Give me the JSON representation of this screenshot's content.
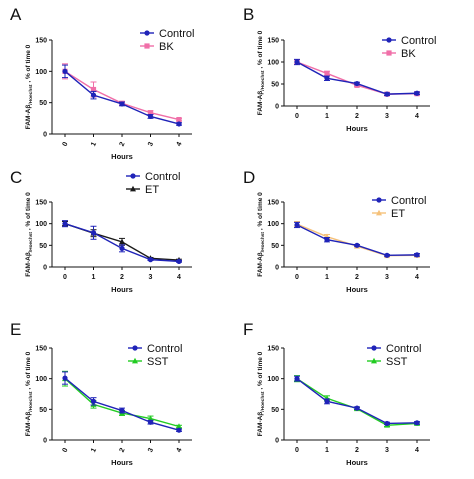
{
  "y_axis_label": {
    "prefix": "FAM-Aβ",
    "sub": "/Hoechst",
    "suffix": ", % of time 0"
  },
  "colors": {
    "control": "#1f23b8",
    "bk": "#f06fa8",
    "et": "#1a1a1a",
    "et_light": "#f5c17a",
    "sst": "#22cc22",
    "errorbar": "#777777"
  },
  "chart_data": [
    {
      "letter": "A",
      "type": "line",
      "xlabel": "Hours",
      "ylabel": "FAM-Aβ/Hoechst , % of time 0",
      "x": [
        0,
        1,
        2,
        3,
        4
      ],
      "ylim": [
        0,
        150
      ],
      "yticks": [
        0,
        50,
        100,
        150
      ],
      "xtick_style": "rotated",
      "legend": "top-right",
      "series": [
        {
          "name": "Control",
          "color": "#1f23b8",
          "marker": "circle",
          "values": [
            100,
            62,
            48,
            28,
            16
          ],
          "errors": [
            10,
            6,
            3,
            3,
            2
          ]
        },
        {
          "name": "BK",
          "color": "#f06fa8",
          "marker": "square",
          "values": [
            100,
            71,
            49,
            34,
            23
          ],
          "errors": [
            12,
            12,
            3,
            3,
            2
          ]
        }
      ]
    },
    {
      "letter": "B",
      "type": "line",
      "xlabel": "Hours",
      "ylabel": "FAM-Aβ/Hoechst , % of time 0",
      "x": [
        0,
        1,
        2,
        3,
        4
      ],
      "ylim": [
        0,
        150
      ],
      "yticks": [
        0,
        50,
        100,
        150
      ],
      "xtick_style": "upright",
      "legend": "top-right",
      "series": [
        {
          "name": "Control",
          "color": "#1f23b8",
          "marker": "circle",
          "values": [
            100,
            63,
            51,
            27,
            29
          ],
          "errors": [
            6,
            5,
            3,
            3,
            3
          ]
        },
        {
          "name": "BK",
          "color": "#f06fa8",
          "marker": "square",
          "values": [
            100,
            74,
            47,
            27,
            28
          ],
          "errors": [
            5,
            5,
            3,
            3,
            3
          ]
        }
      ]
    },
    {
      "letter": "C",
      "type": "line",
      "xlabel": "Hours",
      "ylabel": "FAM-Aβ/Hoechst , % of time 0",
      "x": [
        0,
        1,
        2,
        3,
        4
      ],
      "ylim": [
        0,
        150
      ],
      "yticks": [
        0,
        50,
        100,
        150
      ],
      "xtick_style": "upright",
      "legend": "top-right",
      "series": [
        {
          "name": "Control",
          "color": "#1f23b8",
          "marker": "circle",
          "values": [
            100,
            79,
            43,
            17,
            13
          ],
          "errors": [
            7,
            15,
            8,
            2,
            2
          ]
        },
        {
          "name": "ET",
          "color": "#1a1a1a",
          "marker": "triangle",
          "values": [
            100,
            78,
            58,
            20,
            16
          ],
          "errors": [
            5,
            8,
            8,
            2,
            2
          ]
        }
      ]
    },
    {
      "letter": "D",
      "type": "line",
      "xlabel": "Hours",
      "ylabel": "FAM-Aβ/Hoechst , % of time 0",
      "x": [
        0,
        1,
        2,
        3,
        4
      ],
      "ylim": [
        0,
        150
      ],
      "yticks": [
        0,
        50,
        100,
        150
      ],
      "xtick_style": "upright",
      "legend": "top-right",
      "series": [
        {
          "name": "Control",
          "color": "#1f23b8",
          "marker": "circle",
          "values": [
            97,
            63,
            50,
            27,
            28
          ],
          "errors": [
            6,
            5,
            2,
            2,
            3
          ]
        },
        {
          "name": "ET",
          "color": "#f5c17a",
          "marker": "triangle",
          "values": [
            99,
            70,
            48,
            26,
            27
          ],
          "errors": [
            6,
            5,
            2,
            2,
            3
          ]
        }
      ]
    },
    {
      "letter": "E",
      "type": "line",
      "xlabel": "Hours",
      "ylabel": "FAM-Aβ/Hoechst , % of time 0",
      "x": [
        0,
        1,
        2,
        3,
        4
      ],
      "ylim": [
        0,
        150
      ],
      "yticks": [
        0,
        50,
        100,
        150
      ],
      "xtick_style": "rotated",
      "legend": "top-right",
      "series": [
        {
          "name": "Control",
          "color": "#1f23b8",
          "marker": "circle",
          "values": [
            101,
            63,
            48,
            29,
            16
          ],
          "errors": [
            10,
            6,
            4,
            3,
            2
          ]
        },
        {
          "name": "SST",
          "color": "#22cc22",
          "marker": "triangle",
          "values": [
            100,
            58,
            44,
            35,
            22
          ],
          "errors": [
            12,
            6,
            4,
            4,
            2
          ]
        }
      ]
    },
    {
      "letter": "F",
      "type": "line",
      "xlabel": "Hours",
      "ylabel": "FAM-Aβ/Hoechst , % of time 0",
      "x": [
        0,
        1,
        2,
        3,
        4
      ],
      "ylim": [
        0,
        150
      ],
      "yticks": [
        0,
        50,
        100,
        150
      ],
      "xtick_style": "upright",
      "legend": "top-right",
      "series": [
        {
          "name": "Control",
          "color": "#1f23b8",
          "marker": "circle",
          "values": [
            100,
            63,
            52,
            27,
            28
          ],
          "errors": [
            4,
            4,
            2,
            2,
            2
          ]
        },
        {
          "name": "SST",
          "color": "#22cc22",
          "marker": "triangle",
          "values": [
            100,
            68,
            51,
            24,
            27
          ],
          "errors": [
            5,
            4,
            2,
            2,
            2
          ]
        }
      ]
    }
  ]
}
